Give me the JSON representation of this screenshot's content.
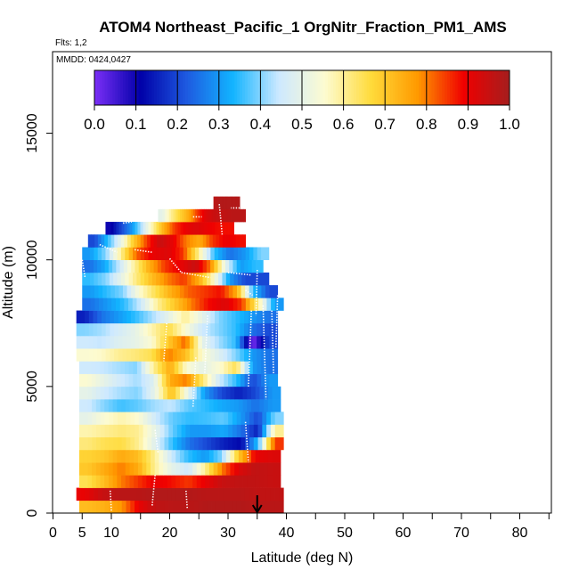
{
  "chart_data": {
    "type": "heatmap",
    "title": "ATOM4 Northeast_Pacific_1 OrgNitr_Fraction_PM1_AMS",
    "flights_label": "Flts: 1,2",
    "date_label": "MMDD: 0424,0427",
    "xlabel": "Latitude (deg N)",
    "ylabel": "Altitude (m)",
    "xlim": [
      0,
      85
    ],
    "ylim": [
      0,
      17500
    ],
    "xticks": [
      0,
      5,
      10,
      20,
      30,
      40,
      50,
      60,
      70,
      80
    ],
    "yticks": [
      0,
      5000,
      10000,
      15000
    ],
    "colorbar": {
      "min": 0.0,
      "max": 1.0,
      "ticks": [
        "0.0",
        "0.1",
        "0.2",
        "0.3",
        "0.4",
        "0.5",
        "0.6",
        "0.7",
        "0.8",
        "0.9",
        "1.0"
      ],
      "stops": [
        "#7b2ff7",
        "#0000a8",
        "#1e5ae0",
        "#12b4ff",
        "#cde9ff",
        "#fdfbd0",
        "#ffdb3b",
        "#ff9a00",
        "#f00000",
        "#a51e1e"
      ]
    },
    "arrow_latitude": 35,
    "bands": [
      {
        "alt": [
          0,
          500
        ],
        "lat": [
          4.5,
          39.5
        ],
        "values": [
          0.72,
          0.74,
          0.78,
          0.9,
          0.96,
          0.97,
          0.97,
          0.98,
          0.98,
          0.98,
          0.97,
          0.97
        ]
      },
      {
        "alt": [
          500,
          1000
        ],
        "lat": [
          4.0,
          39.5
        ],
        "values": [
          0.9,
          0.95,
          0.97,
          0.97,
          0.98,
          0.98,
          0.98,
          0.97,
          0.97,
          0.97,
          0.96,
          0.96
        ]
      },
      {
        "alt": [
          1000,
          1500
        ],
        "lat": [
          4.5,
          39.0
        ],
        "values": [
          0.65,
          0.72,
          0.8,
          0.85,
          0.9,
          0.88,
          0.85,
          0.9,
          0.95,
          0.96,
          0.96,
          0.95
        ]
      },
      {
        "alt": [
          1500,
          2000
        ],
        "lat": [
          4.5,
          39.0
        ],
        "values": [
          0.7,
          0.75,
          0.8,
          0.75,
          0.6,
          0.5,
          0.45,
          0.6,
          0.8,
          0.92,
          0.96,
          0.95
        ]
      },
      {
        "alt": [
          2000,
          2500
        ],
        "lat": [
          4.5,
          39.0
        ],
        "values": [
          0.68,
          0.7,
          0.75,
          0.72,
          0.6,
          0.45,
          0.35,
          0.3,
          0.4,
          0.7,
          0.9,
          0.92
        ]
      },
      {
        "alt": [
          2500,
          3000
        ],
        "lat": [
          4.5,
          39.5
        ],
        "values": [
          0.62,
          0.65,
          0.66,
          0.6,
          0.48,
          0.35,
          0.25,
          0.2,
          0.15,
          0.12,
          0.35,
          0.85
        ]
      },
      {
        "alt": [
          3000,
          3500
        ],
        "lat": [
          4.5,
          39.5
        ],
        "values": [
          0.58,
          0.6,
          0.62,
          0.6,
          0.5,
          0.38,
          0.3,
          0.3,
          0.32,
          0.25,
          0.15,
          0.6
        ]
      },
      {
        "alt": [
          3500,
          4000
        ],
        "lat": [
          4.5,
          39.5
        ],
        "values": [
          0.5,
          0.55,
          0.58,
          0.55,
          0.45,
          0.38,
          0.35,
          0.36,
          0.38,
          0.3,
          0.2,
          0.4
        ]
      },
      {
        "alt": [
          4000,
          4500
        ],
        "lat": [
          4.5,
          39.0
        ],
        "values": [
          0.45,
          0.4,
          0.36,
          0.38,
          0.42,
          0.44,
          0.38,
          0.35,
          0.32,
          0.3,
          0.25,
          0.3
        ]
      },
      {
        "alt": [
          4500,
          5000
        ],
        "lat": [
          4.5,
          39.0
        ],
        "values": [
          0.5,
          0.45,
          0.42,
          0.4,
          0.5,
          0.72,
          0.5,
          0.3,
          0.2,
          0.15,
          0.2,
          0.3
        ]
      },
      {
        "alt": [
          5000,
          5500
        ],
        "lat": [
          4.5,
          38.5
        ],
        "values": [
          0.55,
          0.5,
          0.45,
          0.42,
          0.48,
          0.75,
          0.8,
          0.62,
          0.45,
          0.35,
          0.2,
          0.3
        ]
      },
      {
        "alt": [
          5500,
          6000
        ],
        "lat": [
          4.5,
          38.5
        ],
        "values": [
          0.45,
          0.44,
          0.42,
          0.4,
          0.6,
          0.75,
          0.55,
          0.5,
          0.55,
          0.65,
          0.3,
          0.25
        ]
      },
      {
        "alt": [
          6000,
          6500
        ],
        "lat": [
          4.0,
          38.5
        ],
        "values": [
          0.55,
          0.56,
          0.6,
          0.62,
          0.65,
          0.8,
          0.72,
          0.55,
          0.48,
          0.4,
          0.3,
          0.25
        ]
      },
      {
        "alt": [
          6500,
          7000
        ],
        "lat": [
          4.0,
          38.5
        ],
        "values": [
          0.45,
          0.44,
          0.48,
          0.5,
          0.55,
          0.7,
          0.82,
          0.5,
          0.42,
          0.35,
          0.0,
          0.2
        ]
      },
      {
        "alt": [
          7000,
          7500
        ],
        "lat": [
          4.0,
          38.5
        ],
        "values": [
          0.4,
          0.42,
          0.46,
          0.5,
          0.58,
          0.66,
          0.55,
          0.45,
          0.4,
          0.35,
          0.25,
          0.2
        ]
      },
      {
        "alt": [
          7500,
          8000
        ],
        "lat": [
          4.0,
          38.5
        ],
        "values": [
          0.15,
          0.25,
          0.3,
          0.35,
          0.42,
          0.5,
          0.6,
          0.5,
          0.4,
          0.35,
          0.3,
          0.25
        ]
      },
      {
        "alt": [
          8000,
          8500
        ],
        "lat": [
          5.0,
          39.5
        ],
        "values": [
          0.25,
          0.3,
          0.35,
          0.45,
          0.6,
          0.7,
          0.8,
          0.88,
          0.92,
          0.85,
          0.6,
          0.3
        ]
      },
      {
        "alt": [
          8500,
          9000
        ],
        "lat": [
          5.0,
          38.5
        ],
        "values": [
          0.3,
          0.35,
          0.4,
          0.55,
          0.65,
          0.75,
          0.82,
          0.85,
          0.88,
          0.75,
          0.35,
          0.2
        ]
      },
      {
        "alt": [
          9000,
          9500
        ],
        "lat": [
          5.0,
          37.0
        ],
        "values": [
          0.35,
          0.4,
          0.5,
          0.62,
          0.72,
          0.8,
          0.85,
          0.75,
          0.55,
          0.3,
          0.2,
          0.2
        ]
      },
      {
        "alt": [
          9500,
          10000
        ],
        "lat": [
          5.0,
          36.0
        ],
        "values": [
          0.25,
          0.32,
          0.45,
          0.6,
          0.75,
          0.85,
          0.9,
          0.95,
          0.8,
          0.5,
          0.3,
          0.35
        ]
      },
      {
        "alt": [
          10000,
          10500
        ],
        "lat": [
          5.0,
          37.0
        ],
        "values": [
          0.3,
          0.4,
          0.6,
          0.82,
          0.9,
          0.92,
          0.85,
          0.6,
          0.35,
          0.25,
          0.3,
          0.4
        ]
      },
      {
        "alt": [
          10500,
          11000
        ],
        "lat": [
          6.0,
          33.0
        ],
        "values": [
          0.2,
          0.35,
          0.5,
          0.7,
          0.85,
          0.95,
          0.9,
          0.8,
          0.75,
          0.85,
          0.9,
          0.88
        ]
      },
      {
        "alt": [
          11000,
          11500
        ],
        "lat": [
          9.0,
          31.0
        ],
        "values": [
          0.1,
          0.2,
          0.3,
          0.45,
          0.6,
          0.75,
          0.85,
          0.9,
          0.92,
          0.9,
          0.88,
          0.88
        ]
      },
      {
        "alt": [
          11500,
          12000
        ],
        "lat": [
          18.0,
          33.0
        ],
        "values": [
          0.5,
          0.6,
          0.68,
          0.75,
          0.85,
          0.92,
          0.95,
          0.96,
          0.97,
          0.97
        ]
      },
      {
        "alt": [
          12000,
          12500
        ],
        "lat": [
          27.5,
          32.0
        ],
        "values": [
          0.97,
          0.98,
          0.98,
          0.98,
          0.98,
          0.98
        ]
      }
    ]
  }
}
